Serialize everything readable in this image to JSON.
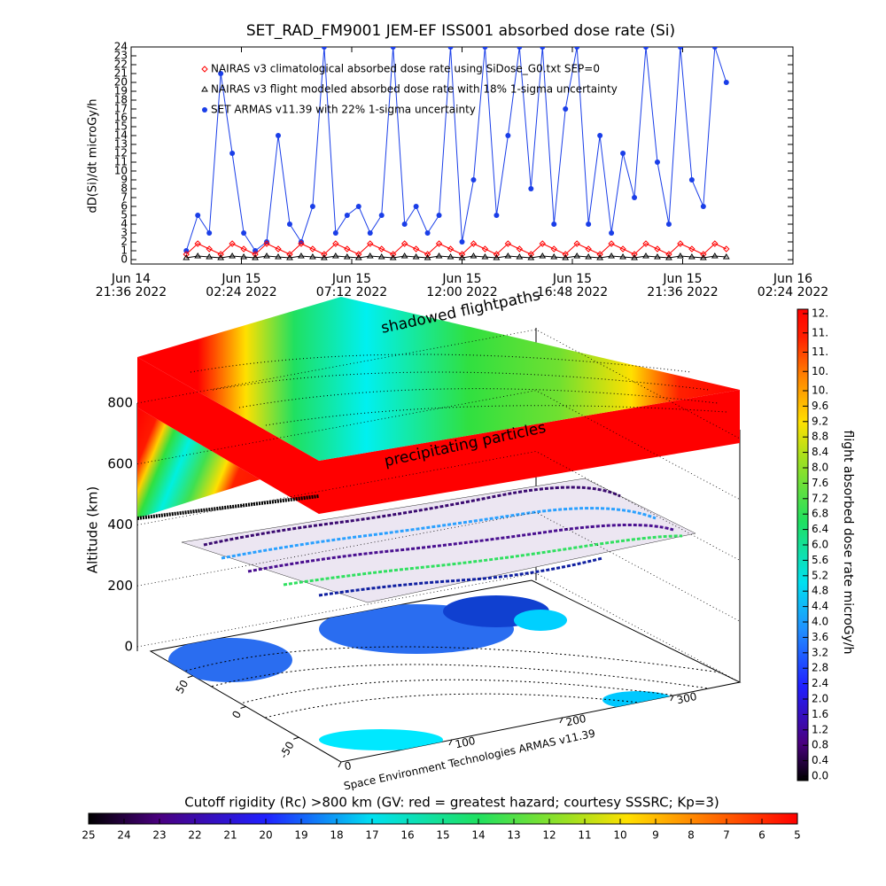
{
  "chart_data": [
    {
      "type": "line",
      "title": "SET_RAD_FM9001  JEM-EF ISS001 absorbed dose rate (Si)",
      "y_label": "dD(Si)/dt microGy/h",
      "xlim": [
        "2022-06-14T21:36",
        "2022-06-16T02:24"
      ],
      "xticks": [
        {
          "value": "2022-06-14T21:36",
          "label": [
            "Jun 14",
            "21:36 2022"
          ]
        },
        {
          "value": "2022-06-15T02:24",
          "label": [
            "Jun 15",
            "02:24 2022"
          ]
        },
        {
          "value": "2022-06-15T07:12",
          "label": [
            "Jun 15",
            "07:12 2022"
          ]
        },
        {
          "value": "2022-06-15T12:00",
          "label": [
            "Jun 15",
            "12:00 2022"
          ]
        },
        {
          "value": "2022-06-15T16:48",
          "label": [
            "Jun 15",
            "16:48 2022"
          ]
        },
        {
          "value": "2022-06-15T21:36",
          "label": [
            "Jun 15",
            "21:36 2022"
          ]
        },
        {
          "value": "2022-06-16T02:24",
          "label": [
            "Jun 16",
            "02:24 2022"
          ]
        }
      ],
      "ylim": [
        -0.5,
        24
      ],
      "yticks": [
        0,
        1,
        2,
        3,
        4,
        5,
        6,
        7,
        8,
        9,
        10,
        11,
        12,
        13,
        14,
        15,
        16,
        17,
        18,
        19,
        20,
        21,
        22,
        23,
        24
      ],
      "x": [
        "2022-06-15T00:00",
        "2022-06-15T00:30",
        "2022-06-15T01:00",
        "2022-06-15T01:30",
        "2022-06-15T02:00",
        "2022-06-15T02:30",
        "2022-06-15T03:00",
        "2022-06-15T03:30",
        "2022-06-15T04:00",
        "2022-06-15T04:30",
        "2022-06-15T05:00",
        "2022-06-15T05:30",
        "2022-06-15T06:00",
        "2022-06-15T06:30",
        "2022-06-15T07:00",
        "2022-06-15T07:30",
        "2022-06-15T08:00",
        "2022-06-15T08:30",
        "2022-06-15T09:00",
        "2022-06-15T09:30",
        "2022-06-15T10:00",
        "2022-06-15T10:30",
        "2022-06-15T11:00",
        "2022-06-15T11:30",
        "2022-06-15T12:00",
        "2022-06-15T12:30",
        "2022-06-15T13:00",
        "2022-06-15T13:30",
        "2022-06-15T14:00",
        "2022-06-15T14:30",
        "2022-06-15T15:00",
        "2022-06-15T15:30",
        "2022-06-15T16:00",
        "2022-06-15T16:30",
        "2022-06-15T17:00",
        "2022-06-15T17:30",
        "2022-06-15T18:00",
        "2022-06-15T18:30",
        "2022-06-15T19:00",
        "2022-06-15T19:30",
        "2022-06-15T20:00",
        "2022-06-15T20:30",
        "2022-06-15T21:00",
        "2022-06-15T21:30",
        "2022-06-15T22:00",
        "2022-06-15T22:30",
        "2022-06-15T23:00",
        "2022-06-15T23:30"
      ],
      "series": [
        {
          "name": "NAIRAS v3 climatological absorbed dose rate using SiDose_G0.txt SEP=0",
          "color": "#ff0000",
          "marker": "diamond",
          "values": [
            0.6,
            1.8,
            1.2,
            0.6,
            1.8,
            1.2,
            0.6,
            1.8,
            1.2,
            0.6,
            1.8,
            1.2,
            0.6,
            1.8,
            1.2,
            0.6,
            1.8,
            1.2,
            0.6,
            1.8,
            1.2,
            0.6,
            1.8,
            1.2,
            0.6,
            1.8,
            1.2,
            0.6,
            1.8,
            1.2,
            0.6,
            1.8,
            1.2,
            0.6,
            1.8,
            1.2,
            0.6,
            1.8,
            1.2,
            0.6,
            1.8,
            1.2,
            0.6,
            1.8,
            1.2,
            0.6,
            1.8,
            1.2
          ]
        },
        {
          "name": "NAIRAS v3 flight modeled absorbed dose rate with 18% 1-sigma uncertainty",
          "color": "#000000",
          "marker": "triangle",
          "values": [
            0.2,
            0.4,
            0.3,
            0.2,
            0.4,
            0.3,
            0.2,
            0.4,
            0.3,
            0.2,
            0.4,
            0.3,
            0.2,
            0.4,
            0.3,
            0.2,
            0.4,
            0.3,
            0.2,
            0.4,
            0.3,
            0.2,
            0.4,
            0.3,
            0.2,
            0.4,
            0.3,
            0.2,
            0.4,
            0.3,
            0.2,
            0.4,
            0.3,
            0.2,
            0.4,
            0.3,
            0.2,
            0.4,
            0.3,
            0.2,
            0.4,
            0.3,
            0.2,
            0.4,
            0.3,
            0.2,
            0.4,
            0.3
          ]
        },
        {
          "name": "SET ARMAS v11.39 with 22% 1-sigma uncertainty",
          "color": "#1a3ee8",
          "marker": "circle",
          "values": [
            1,
            5,
            3,
            21,
            12,
            3,
            1,
            2,
            14,
            4,
            2,
            6,
            24,
            3,
            5,
            6,
            3,
            5,
            24,
            4,
            6,
            3,
            5,
            24,
            2,
            9,
            24,
            5,
            14,
            24,
            8,
            24,
            4,
            17,
            24,
            4,
            14,
            3,
            12,
            7,
            24,
            11,
            4,
            24,
            9,
            6,
            24,
            20
          ]
        }
      ]
    },
    {
      "type": "surface3d",
      "y_label": "Altitude (km)",
      "ylim": [
        0,
        800
      ],
      "yticks": [
        0,
        200,
        400,
        600,
        800
      ],
      "xlim": [
        0,
        360
      ],
      "xticks": [
        0,
        100,
        200,
        300
      ],
      "latlim": [
        -90,
        90
      ],
      "latticks": [
        -50,
        0,
        50
      ],
      "annotations": [
        "shadowed flightpaths",
        "precipitating particles"
      ],
      "credit": "Space Environment Technologies ARMAS v11.39",
      "colorbar": {
        "label": "flight absorbed dose rate microGy/h",
        "lim": [
          0,
          12
        ],
        "ticks": [
          {
            "value": 0,
            "label": "0.0"
          },
          0.4,
          0.8,
          1.2,
          1.6,
          {
            "value": 2,
            "label": "2.0"
          },
          2.4,
          2.8,
          3.2,
          3.6,
          {
            "value": 4,
            "label": "4.0"
          },
          4.4,
          4.8,
          5.2,
          5.6,
          {
            "value": 6,
            "label": "6.0"
          },
          6.4,
          6.8,
          7.2,
          7.6,
          {
            "value": 8,
            "label": "8.0"
          },
          8.4,
          8.8,
          9.2,
          9.6,
          {
            "value": 10,
            "label": "10."
          },
          {
            "value": 10.5,
            "label": "10."
          },
          {
            "value": 11,
            "label": "11."
          },
          {
            "value": 11.5,
            "label": "11."
          },
          {
            "value": 12,
            "label": "12."
          }
        ]
      },
      "rigidity_colorbar": {
        "title": "Cutoff rigidity (Rc) >800 km (GV: red = greatest hazard; courtesy SSSRC; Kp=3)",
        "lim": [
          25,
          5
        ],
        "ticks": [
          25,
          24,
          23,
          22,
          21,
          20,
          19,
          18,
          17,
          16,
          15,
          14,
          13,
          12,
          11,
          10,
          9,
          8,
          7,
          6,
          5
        ]
      }
    }
  ]
}
